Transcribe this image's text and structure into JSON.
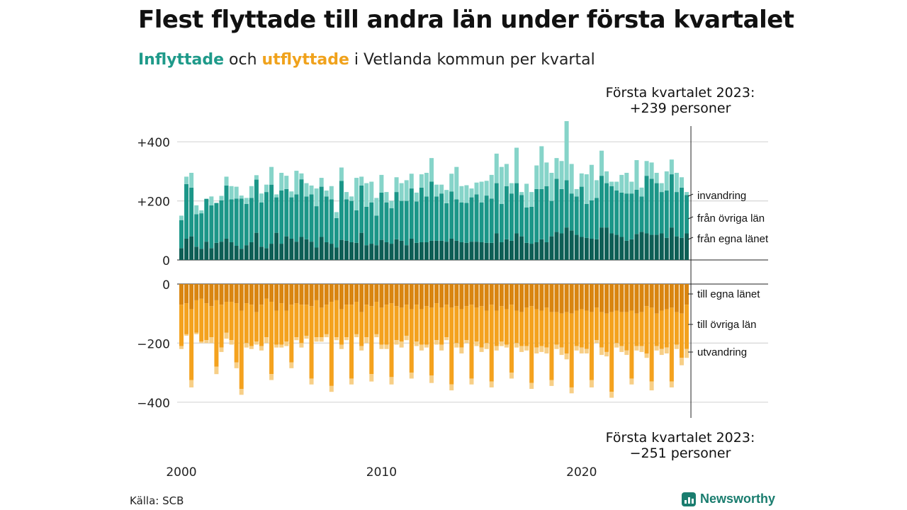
{
  "title": "Flest flyttade till andra län under första kvartalet",
  "subtitle": {
    "inflow": "Inflyttade",
    "and": " och ",
    "outflow": "utflyttade",
    "rest": " i Vetlanda kommun per kvartal"
  },
  "source": "Källa: SCB",
  "brand": "Newsworthy",
  "colors": {
    "in_own": "#0d5e55",
    "in_other": "#1b9688",
    "in_immigration": "#86d4c9",
    "out_own": "#d98510",
    "out_other": "#f4a21e",
    "out_emigration": "#f7cf87"
  },
  "chart_data": {
    "type": "bar",
    "stacked": true,
    "x_start": "2000 Q1",
    "x_ticks": [
      "2000",
      "2010",
      "2020"
    ],
    "upper": {
      "y_ticks": [
        "+400",
        "+200",
        "0"
      ],
      "ylim": [
        0,
        460
      ],
      "series": [
        {
          "name": "från egna länet",
          "values": [
            40,
            72,
            80,
            45,
            38,
            62,
            40,
            58,
            62,
            72,
            60,
            48,
            38,
            50,
            60,
            92,
            45,
            40,
            55,
            92,
            55,
            80,
            72,
            62,
            78,
            70,
            62,
            42,
            78,
            60,
            55,
            42,
            68,
            65,
            60,
            58,
            92,
            50,
            55,
            50,
            68,
            60,
            55,
            70,
            65,
            50,
            72,
            58,
            60,
            60,
            65,
            65,
            65,
            62,
            72,
            65,
            60,
            58,
            62,
            62,
            60,
            58,
            58,
            90,
            60,
            70,
            65,
            90,
            80,
            58,
            55,
            60,
            70,
            60,
            80,
            95,
            90,
            110,
            100,
            85,
            78,
            75,
            72,
            70,
            110,
            110,
            90,
            85,
            78,
            65,
            70,
            88,
            95,
            90,
            85,
            85,
            90,
            75,
            110,
            80,
            75,
            90
          ]
        },
        {
          "name": "från övriga län",
          "values": [
            95,
            185,
            165,
            110,
            120,
            145,
            145,
            135,
            140,
            180,
            145,
            160,
            170,
            140,
            150,
            180,
            150,
            190,
            200,
            120,
            180,
            160,
            140,
            160,
            195,
            145,
            160,
            140,
            170,
            155,
            150,
            100,
            200,
            140,
            140,
            110,
            160,
            130,
            140,
            100,
            160,
            135,
            120,
            160,
            135,
            150,
            170,
            140,
            185,
            155,
            200,
            150,
            160,
            130,
            160,
            140,
            135,
            135,
            150,
            160,
            135,
            160,
            150,
            170,
            130,
            180,
            160,
            170,
            140,
            120,
            125,
            180,
            170,
            190,
            120,
            180,
            150,
            160,
            125,
            130,
            170,
            115,
            130,
            140,
            175,
            150,
            160,
            150,
            150,
            160,
            155,
            150,
            120,
            195,
            190,
            175,
            140,
            160,
            180,
            150,
            170,
            130
          ]
        },
        {
          "name": "invandring",
          "values": [
            15,
            25,
            50,
            30,
            10,
            0,
            30,
            0,
            15,
            30,
            45,
            40,
            10,
            20,
            40,
            15,
            30,
            25,
            60,
            10,
            60,
            45,
            20,
            80,
            20,
            45,
            30,
            60,
            30,
            20,
            45,
            20,
            45,
            25,
            15,
            110,
            30,
            80,
            70,
            60,
            60,
            35,
            25,
            50,
            60,
            70,
            50,
            30,
            45,
            80,
            80,
            40,
            30,
            45,
            60,
            110,
            55,
            60,
            30,
            40,
            70,
            50,
            80,
            100,
            125,
            75,
            35,
            120,
            10,
            80,
            50,
            80,
            145,
            80,
            95,
            70,
            95,
            200,
            100,
            25,
            45,
            100,
            120,
            60,
            85,
            40,
            15,
            30,
            60,
            70,
            40,
            100,
            30,
            50,
            55,
            35,
            30,
            65,
            50,
            65,
            35,
            10
          ]
        }
      ],
      "annotation": [
        "Första kvartalet 2023:",
        "+239 personer"
      ]
    },
    "lower": {
      "y_ticks": [
        "0",
        "−200",
        "−400"
      ],
      "ylim": [
        -460,
        0
      ],
      "series": [
        {
          "name": "till egna länet",
          "values": [
            -70,
            -65,
            -85,
            -55,
            -50,
            -65,
            -75,
            -55,
            -70,
            -60,
            -60,
            -65,
            -90,
            -65,
            -70,
            -95,
            -70,
            -50,
            -60,
            -90,
            -65,
            -90,
            -70,
            -65,
            -70,
            -70,
            -75,
            -55,
            -80,
            -70,
            -60,
            -55,
            -85,
            -70,
            -70,
            -60,
            -95,
            -70,
            -75,
            -60,
            -80,
            -70,
            -65,
            -75,
            -80,
            -70,
            -85,
            -70,
            -85,
            -75,
            -80,
            -65,
            -80,
            -70,
            -80,
            -75,
            -85,
            -75,
            -70,
            -80,
            -75,
            -90,
            -70,
            -90,
            -75,
            -85,
            -70,
            -90,
            -95,
            -80,
            -75,
            -85,
            -90,
            -80,
            -95,
            -95,
            -100,
            -95,
            -100,
            -90,
            -85,
            -90,
            -95,
            -80,
            -95,
            -100,
            -95,
            -90,
            -95,
            -95,
            -90,
            -100,
            -95,
            -75,
            -80,
            -100,
            -90,
            -85,
            -80,
            -95,
            -100,
            -70
          ]
        },
        {
          "name": "till övriga län",
          "values": [
            -140,
            -105,
            -240,
            -110,
            -145,
            -125,
            -105,
            -225,
            -145,
            -105,
            -130,
            -200,
            -265,
            -135,
            -140,
            -100,
            -140,
            -130,
            -245,
            -115,
            -140,
            -105,
            -195,
            -115,
            -130,
            -105,
            -245,
            -125,
            -100,
            -100,
            -285,
            -125,
            -120,
            -110,
            -250,
            -110,
            -115,
            -110,
            -230,
            -110,
            -125,
            -135,
            -250,
            -115,
            -115,
            -105,
            -215,
            -125,
            -120,
            -130,
            -230,
            -125,
            -125,
            -110,
            -260,
            -125,
            -130,
            -115,
            -250,
            -115,
            -140,
            -110,
            -260,
            -120,
            -120,
            -120,
            -230,
            -110,
            -115,
            -130,
            -260,
            -130,
            -120,
            -135,
            -230,
            -110,
            -115,
            -140,
            -250,
            -120,
            -130,
            -130,
            -230,
            -110,
            -120,
            -130,
            -270,
            -110,
            -115,
            -130,
            -230,
            -110,
            -115,
            -160,
            -250,
            -110,
            -130,
            -130,
            -250,
            -110,
            -150,
            -150
          ]
        },
        {
          "name": "utvandring",
          "values": [
            -10,
            -5,
            -25,
            -5,
            -5,
            -10,
            -20,
            -25,
            -15,
            -20,
            -15,
            -20,
            -20,
            -15,
            -10,
            -10,
            -15,
            -20,
            -20,
            -10,
            -10,
            -15,
            -20,
            -10,
            -15,
            -10,
            -20,
            -15,
            -15,
            -10,
            -20,
            -10,
            -15,
            -10,
            -20,
            -10,
            -15,
            -20,
            -25,
            -10,
            -15,
            -15,
            -25,
            -15,
            -20,
            -15,
            -20,
            -15,
            -20,
            -10,
            -25,
            -15,
            -20,
            -10,
            -20,
            -15,
            -20,
            -10,
            -20,
            -15,
            -15,
            -20,
            -20,
            -15,
            -15,
            -10,
            -20,
            -15,
            -20,
            -15,
            -20,
            -20,
            -20,
            -20,
            -20,
            -15,
            -25,
            -20,
            -20,
            -15,
            -20,
            -15,
            -25,
            -10,
            -25,
            -15,
            -20,
            -15,
            -20,
            -15,
            -20,
            -15,
            -20,
            -15,
            -30,
            -15,
            -20,
            -20,
            -20,
            -15,
            -25,
            -30
          ]
        }
      ],
      "annotation": [
        "Första kvartalet 2023:",
        "−251 personer"
      ]
    }
  }
}
